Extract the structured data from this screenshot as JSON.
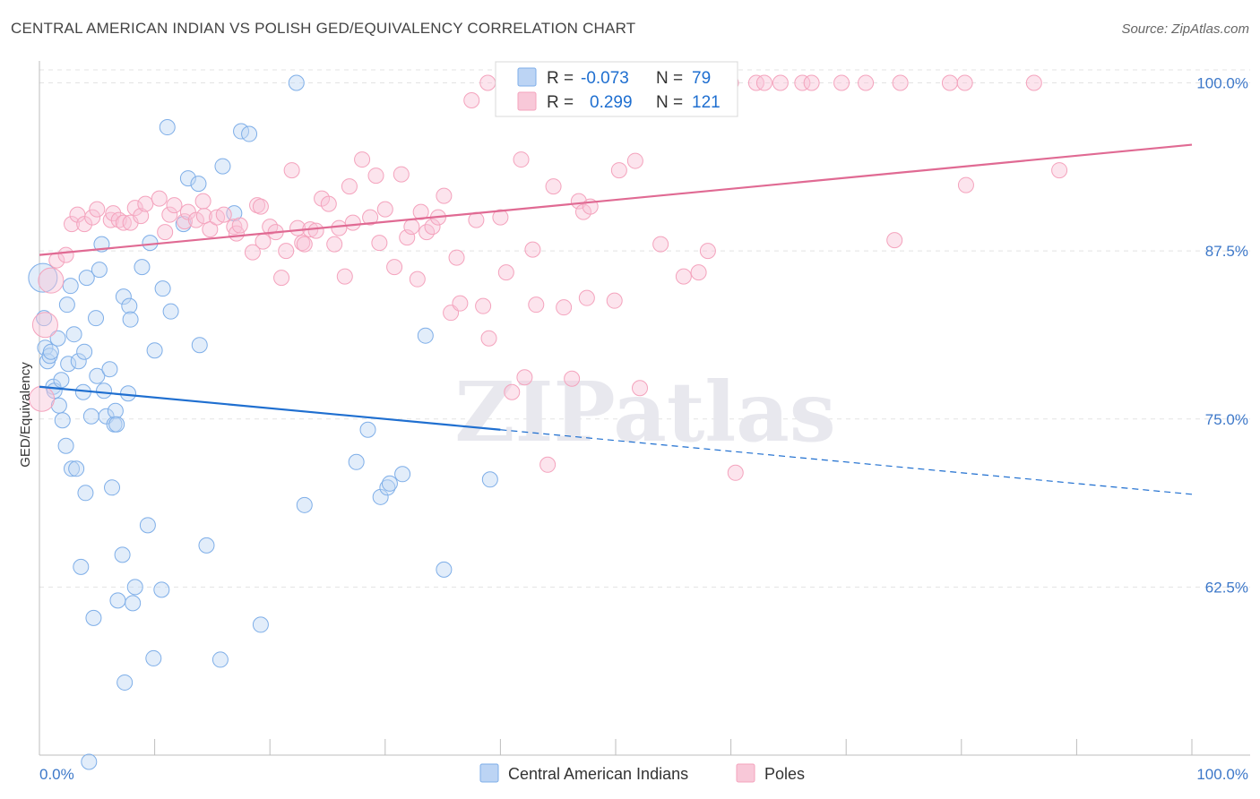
{
  "chart_data": {
    "type": "scatter",
    "title": "CENTRAL AMERICAN INDIAN VS POLISH GED/EQUIVALENCY CORRELATION CHART",
    "source": "Source: ZipAtlas.com",
    "ylabel": "GED/Equivalency",
    "xlabel": "",
    "xlim": [
      0,
      100
    ],
    "ylim": [
      50.0,
      101.5
    ],
    "x_tick_labels": [
      "0.0%",
      "100.0%"
    ],
    "y_ticks": [
      62.5,
      75.0,
      87.5,
      100.0
    ],
    "y_tick_labels": [
      "62.5%",
      "75.0%",
      "87.5%",
      "100.0%"
    ],
    "grid": true,
    "legend_position": "top-center",
    "watermark": "ZIPatlas",
    "series": [
      {
        "name": "Central American Indians",
        "color": "#7eaee8",
        "line_color": "#1f6fd0",
        "R": "-0.073",
        "N": "79",
        "trend": {
          "x0": 0,
          "y0": 77.4,
          "x1": 100,
          "y1": 69.4,
          "solid_until": 40
        },
        "points": [
          [
            0.3,
            85.5
          ],
          [
            0.4,
            82.5
          ],
          [
            0.5,
            80.3
          ],
          [
            0.7,
            79.3
          ],
          [
            0.9,
            79.7
          ],
          [
            1.0,
            80.0
          ],
          [
            1.2,
            77.4
          ],
          [
            1.3,
            77.1
          ],
          [
            1.6,
            81.0
          ],
          [
            1.7,
            76.0
          ],
          [
            1.9,
            77.9
          ],
          [
            2.0,
            74.9
          ],
          [
            2.3,
            73.0
          ],
          [
            2.4,
            83.5
          ],
          [
            2.5,
            79.1
          ],
          [
            2.7,
            84.9
          ],
          [
            2.8,
            71.3
          ],
          [
            3.0,
            81.3
          ],
          [
            3.2,
            71.3
          ],
          [
            3.4,
            79.3
          ],
          [
            3.6,
            64.0
          ],
          [
            3.8,
            77.0
          ],
          [
            3.9,
            80.0
          ],
          [
            4.0,
            69.5
          ],
          [
            4.1,
            85.5
          ],
          [
            4.5,
            75.2
          ],
          [
            4.7,
            60.2
          ],
          [
            4.9,
            82.5
          ],
          [
            5.0,
            78.2
          ],
          [
            5.2,
            86.1
          ],
          [
            5.4,
            88.0
          ],
          [
            5.6,
            77.1
          ],
          [
            5.8,
            75.2
          ],
          [
            6.1,
            78.7
          ],
          [
            6.3,
            69.9
          ],
          [
            6.5,
            74.6
          ],
          [
            6.6,
            75.6
          ],
          [
            6.7,
            74.6
          ],
          [
            6.8,
            61.5
          ],
          [
            7.2,
            64.9
          ],
          [
            7.3,
            84.1
          ],
          [
            7.4,
            55.4
          ],
          [
            7.7,
            76.9
          ],
          [
            7.8,
            83.4
          ],
          [
            7.9,
            82.4
          ],
          [
            8.1,
            61.3
          ],
          [
            8.3,
            62.5
          ],
          [
            8.9,
            86.3
          ],
          [
            9.4,
            67.1
          ],
          [
            9.6,
            88.1
          ],
          [
            9.9,
            57.2
          ],
          [
            10.0,
            80.1
          ],
          [
            10.6,
            62.3
          ],
          [
            10.7,
            84.7
          ],
          [
            11.1,
            96.7
          ],
          [
            11.4,
            83.0
          ],
          [
            12.5,
            89.5
          ],
          [
            12.9,
            92.9
          ],
          [
            13.8,
            92.5
          ],
          [
            13.9,
            80.5
          ],
          [
            14.5,
            65.6
          ],
          [
            15.7,
            57.1
          ],
          [
            15.9,
            93.8
          ],
          [
            16.9,
            90.3
          ],
          [
            17.5,
            96.4
          ],
          [
            18.2,
            96.2
          ],
          [
            19.2,
            59.7
          ],
          [
            22.3,
            100.0
          ],
          [
            23.0,
            68.6
          ],
          [
            27.5,
            71.8
          ],
          [
            28.5,
            74.2
          ],
          [
            29.6,
            69.2
          ],
          [
            30.2,
            69.9
          ],
          [
            30.4,
            70.2
          ],
          [
            31.5,
            70.9
          ],
          [
            33.5,
            81.2
          ],
          [
            35.1,
            63.8
          ],
          [
            39.1,
            70.5
          ],
          [
            4.3,
            49.5
          ]
        ]
      },
      {
        "name": "Poles",
        "color": "#f4a3bd",
        "line_color": "#e06a93",
        "R": "0.299",
        "N": "121",
        "trend": {
          "x0": 0,
          "y0": 87.2,
          "x1": 100,
          "y1": 95.4
        },
        "points": [
          [
            0.2,
            76.5
          ],
          [
            0.5,
            82.0
          ],
          [
            1.0,
            85.3
          ],
          [
            1.5,
            86.8
          ],
          [
            2.3,
            87.2
          ],
          [
            2.8,
            89.5
          ],
          [
            3.3,
            90.2
          ],
          [
            3.9,
            89.5
          ],
          [
            4.6,
            90.0
          ],
          [
            5.0,
            90.6
          ],
          [
            6.2,
            89.8
          ],
          [
            6.4,
            90.3
          ],
          [
            6.9,
            89.8
          ],
          [
            7.3,
            89.6
          ],
          [
            7.9,
            89.6
          ],
          [
            8.3,
            90.7
          ],
          [
            8.8,
            90.1
          ],
          [
            9.2,
            91.0
          ],
          [
            10.4,
            91.4
          ],
          [
            10.9,
            88.9
          ],
          [
            11.3,
            90.2
          ],
          [
            11.7,
            90.9
          ],
          [
            12.6,
            89.7
          ],
          [
            12.9,
            90.4
          ],
          [
            13.6,
            89.8
          ],
          [
            14.2,
            91.2
          ],
          [
            14.3,
            90.1
          ],
          [
            14.8,
            89.1
          ],
          [
            15.4,
            90.0
          ],
          [
            16.0,
            90.2
          ],
          [
            16.9,
            89.3
          ],
          [
            17.1,
            88.8
          ],
          [
            17.4,
            89.4
          ],
          [
            18.5,
            87.4
          ],
          [
            18.9,
            90.9
          ],
          [
            19.2,
            90.8
          ],
          [
            19.4,
            88.2
          ],
          [
            20.0,
            89.3
          ],
          [
            20.5,
            88.9
          ],
          [
            21.0,
            85.5
          ],
          [
            21.4,
            87.5
          ],
          [
            21.9,
            93.5
          ],
          [
            22.4,
            89.2
          ],
          [
            22.8,
            88.1
          ],
          [
            23.0,
            88.0
          ],
          [
            23.5,
            89.1
          ],
          [
            24.0,
            89.0
          ],
          [
            24.5,
            91.4
          ],
          [
            25.1,
            91.0
          ],
          [
            25.6,
            88.0
          ],
          [
            26.0,
            89.2
          ],
          [
            26.5,
            85.6
          ],
          [
            26.9,
            92.3
          ],
          [
            27.2,
            89.6
          ],
          [
            28.0,
            94.3
          ],
          [
            28.7,
            90.0
          ],
          [
            29.2,
            93.1
          ],
          [
            29.5,
            88.1
          ],
          [
            30.0,
            90.6
          ],
          [
            30.8,
            86.3
          ],
          [
            31.4,
            93.2
          ],
          [
            31.9,
            88.5
          ],
          [
            32.3,
            89.3
          ],
          [
            32.8,
            85.4
          ],
          [
            33.1,
            90.4
          ],
          [
            33.6,
            88.9
          ],
          [
            34.1,
            89.3
          ],
          [
            34.6,
            90.0
          ],
          [
            35.1,
            91.6
          ],
          [
            35.7,
            82.9
          ],
          [
            36.2,
            87.0
          ],
          [
            36.5,
            83.6
          ],
          [
            37.5,
            98.7
          ],
          [
            37.9,
            89.8
          ],
          [
            38.5,
            83.4
          ],
          [
            38.9,
            100.0
          ],
          [
            39.0,
            81.0
          ],
          [
            40.0,
            90.0
          ],
          [
            40.5,
            85.9
          ],
          [
            41.0,
            77.0
          ],
          [
            41.8,
            94.3
          ],
          [
            42.1,
            78.1
          ],
          [
            42.8,
            87.6
          ],
          [
            43.1,
            83.5
          ],
          [
            44.1,
            71.6
          ],
          [
            44.6,
            92.3
          ],
          [
            45.5,
            83.3
          ],
          [
            46.2,
            78.0
          ],
          [
            46.8,
            91.2
          ],
          [
            47.2,
            90.4
          ],
          [
            47.8,
            90.8
          ],
          [
            48.0,
            100.0
          ],
          [
            47.5,
            84.0
          ],
          [
            49.3,
            100.0
          ],
          [
            49.9,
            83.8
          ],
          [
            50.3,
            93.5
          ],
          [
            51.7,
            94.2
          ],
          [
            52.1,
            77.3
          ],
          [
            53.6,
            100.0
          ],
          [
            53.9,
            88.0
          ],
          [
            54.5,
            100.0
          ],
          [
            55.9,
            85.6
          ],
          [
            57.2,
            85.9
          ],
          [
            57.7,
            100.0
          ],
          [
            58.0,
            87.5
          ],
          [
            60.0,
            100.0
          ],
          [
            60.4,
            71.0
          ],
          [
            62.2,
            100.0
          ],
          [
            62.9,
            100.0
          ],
          [
            64.3,
            100.0
          ],
          [
            66.2,
            100.0
          ],
          [
            67.0,
            100.0
          ],
          [
            69.6,
            100.0
          ],
          [
            71.7,
            100.0
          ],
          [
            74.2,
            88.3
          ],
          [
            74.7,
            100.0
          ],
          [
            79.0,
            100.0
          ],
          [
            80.3,
            100.0
          ],
          [
            80.4,
            92.4
          ],
          [
            86.3,
            100.0
          ],
          [
            88.5,
            93.5
          ]
        ]
      }
    ]
  }
}
